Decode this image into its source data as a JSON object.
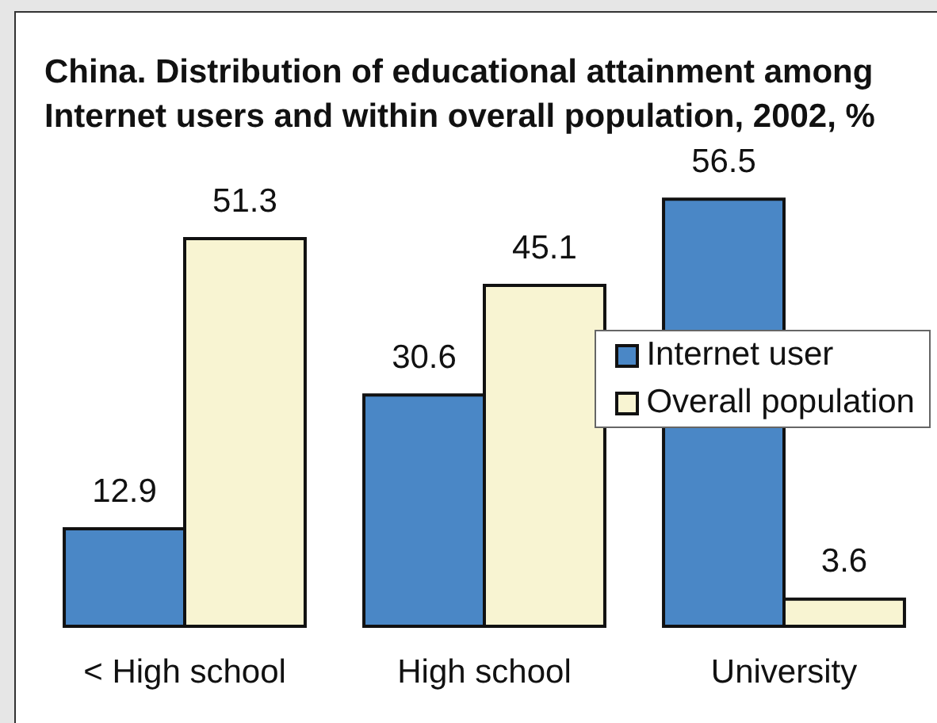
{
  "chart_data": {
    "type": "bar",
    "title": "China. Distribution of educational attainment among Internet users and within overall population, 2002, %",
    "categories": [
      "< High school",
      "High school",
      "University"
    ],
    "series": [
      {
        "name": "Internet user",
        "color": "#4a87c6",
        "values": [
          12.9,
          30.6,
          56.5
        ]
      },
      {
        "name": "Overall population",
        "color": "#f8f4d2",
        "values": [
          51.3,
          45.1,
          3.6
        ]
      }
    ],
    "data_labels": true,
    "legend": "right",
    "grid": false
  }
}
